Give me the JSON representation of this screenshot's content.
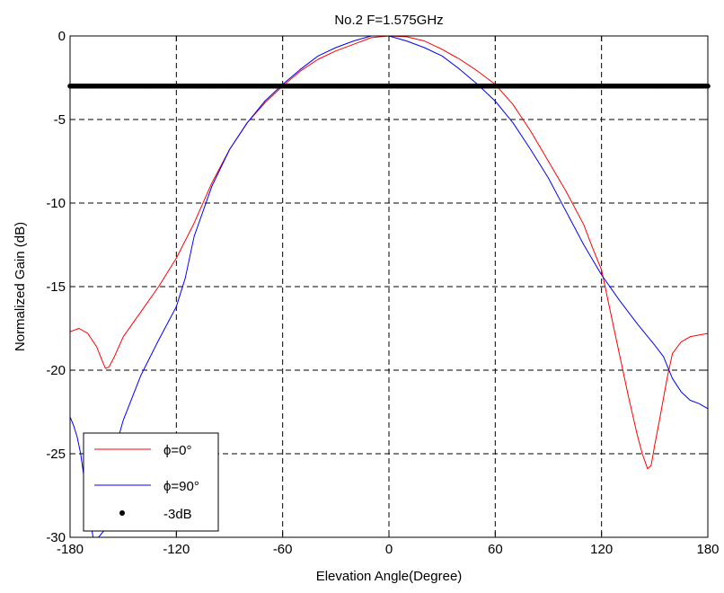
{
  "chart_data": {
    "type": "line",
    "title": "No.2 F=1.575GHz",
    "xlabel": "Elevation Angle(Degree)",
    "ylabel": "Normalized Gain (dB)",
    "xlim": [
      -180,
      180
    ],
    "ylim": [
      -30,
      0
    ],
    "xticks": [
      -180,
      -120,
      -60,
      0,
      60,
      120,
      180
    ],
    "yticks": [
      0,
      -5,
      -10,
      -15,
      -20,
      -25,
      -30
    ],
    "grid": true,
    "legend_position": "bottom-left",
    "series": [
      {
        "name": "ϕ=0°",
        "color": "#ff0000",
        "style": "line",
        "points": [
          [
            -180,
            -17.7
          ],
          [
            -175,
            -17.5
          ],
          [
            -170,
            -17.8
          ],
          [
            -165,
            -18.6
          ],
          [
            -162,
            -19.4
          ],
          [
            -160,
            -19.9
          ],
          [
            -158,
            -19.8
          ],
          [
            -155,
            -19.2
          ],
          [
            -150,
            -18.0
          ],
          [
            -140,
            -16.5
          ],
          [
            -130,
            -15.0
          ],
          [
            -120,
            -13.3
          ],
          [
            -110,
            -11.2
          ],
          [
            -100,
            -8.8
          ],
          [
            -90,
            -6.8
          ],
          [
            -80,
            -5.2
          ],
          [
            -70,
            -4.0
          ],
          [
            -60,
            -3.0
          ],
          [
            -50,
            -2.1
          ],
          [
            -40,
            -1.4
          ],
          [
            -30,
            -0.9
          ],
          [
            -20,
            -0.5
          ],
          [
            -10,
            -0.1
          ],
          [
            0,
            0.0
          ],
          [
            10,
            -0.05
          ],
          [
            20,
            -0.3
          ],
          [
            30,
            -0.8
          ],
          [
            40,
            -1.4
          ],
          [
            50,
            -2.1
          ],
          [
            60,
            -2.9
          ],
          [
            70,
            -4.1
          ],
          [
            80,
            -5.7
          ],
          [
            90,
            -7.5
          ],
          [
            100,
            -9.3
          ],
          [
            110,
            -11.3
          ],
          [
            115,
            -12.7
          ],
          [
            120,
            -14.0
          ],
          [
            125,
            -16.5
          ],
          [
            130,
            -19.0
          ],
          [
            135,
            -21.5
          ],
          [
            140,
            -23.8
          ],
          [
            143,
            -25.0
          ],
          [
            146,
            -25.9
          ],
          [
            148,
            -25.7
          ],
          [
            150,
            -24.5
          ],
          [
            153,
            -22.8
          ],
          [
            157,
            -20.5
          ],
          [
            160,
            -19.0
          ],
          [
            165,
            -18.3
          ],
          [
            170,
            -18.0
          ],
          [
            175,
            -17.9
          ],
          [
            180,
            -17.8
          ]
        ]
      },
      {
        "name": "ϕ=90°",
        "color": "#0000ff",
        "style": "line",
        "points": [
          [
            -180,
            -22.8
          ],
          [
            -178,
            -23.3
          ],
          [
            -176,
            -24.0
          ],
          [
            -174,
            -25.0
          ],
          [
            -170,
            -28.0
          ],
          [
            -167,
            -30.0
          ],
          [
            -164,
            -30.0
          ],
          [
            -160,
            -29.5
          ],
          [
            -158,
            -28.0
          ],
          [
            -156,
            -26.0
          ],
          [
            -154,
            -24.5
          ],
          [
            -150,
            -23.0
          ],
          [
            -140,
            -20.3
          ],
          [
            -130,
            -18.2
          ],
          [
            -125,
            -17.2
          ],
          [
            -120,
            -16.2
          ],
          [
            -115,
            -14.5
          ],
          [
            -110,
            -12.0
          ],
          [
            -100,
            -9.0
          ],
          [
            -90,
            -6.8
          ],
          [
            -80,
            -5.2
          ],
          [
            -70,
            -3.9
          ],
          [
            -60,
            -2.9
          ],
          [
            -50,
            -2.0
          ],
          [
            -40,
            -1.2
          ],
          [
            -30,
            -0.7
          ],
          [
            -20,
            -0.3
          ],
          [
            -10,
            0.0
          ],
          [
            0,
            0.0
          ],
          [
            10,
            -0.3
          ],
          [
            20,
            -0.7
          ],
          [
            30,
            -1.2
          ],
          [
            40,
            -2.0
          ],
          [
            50,
            -2.9
          ],
          [
            60,
            -3.9
          ],
          [
            70,
            -5.2
          ],
          [
            80,
            -6.8
          ],
          [
            90,
            -8.5
          ],
          [
            100,
            -10.5
          ],
          [
            110,
            -12.5
          ],
          [
            120,
            -14.3
          ],
          [
            130,
            -15.8
          ],
          [
            140,
            -17.2
          ],
          [
            150,
            -18.5
          ],
          [
            155,
            -19.2
          ],
          [
            160,
            -20.5
          ],
          [
            165,
            -21.3
          ],
          [
            170,
            -21.8
          ],
          [
            175,
            -22.0
          ],
          [
            180,
            -22.3
          ]
        ]
      },
      {
        "name": "-3dB",
        "color": "#000000",
        "style": "markers",
        "y": -3
      }
    ]
  }
}
